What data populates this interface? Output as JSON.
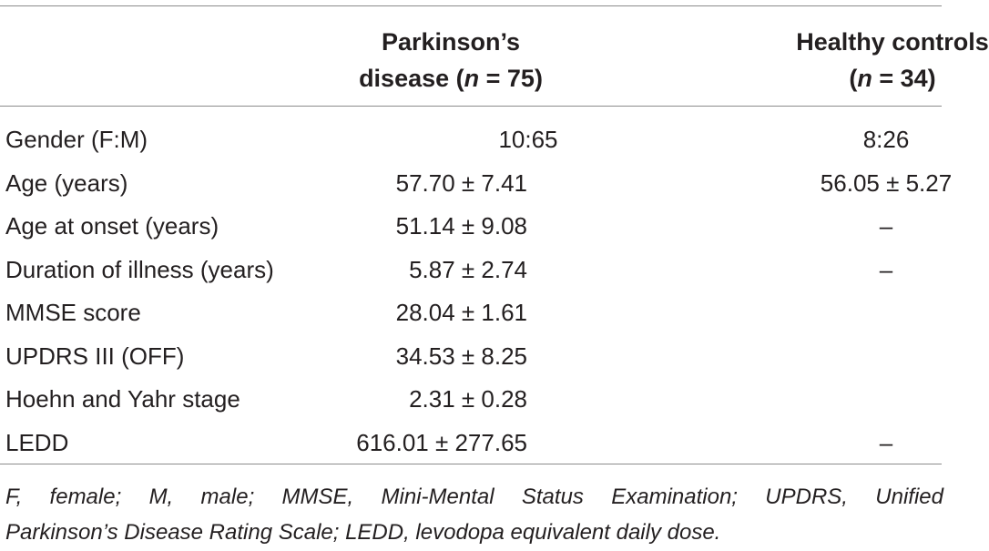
{
  "table": {
    "header": {
      "pd_line1": "Parkinson’s",
      "pd_line2_prefix": "disease (",
      "pd_n": "n",
      "pd_line2_suffix": " = 75)",
      "hc_line1": "Healthy controls",
      "hc_line2_prefix": "(",
      "hc_n": "n",
      "hc_line2_suffix": " = 34)"
    },
    "rows": [
      {
        "label": "Gender (F:M)",
        "pd": "10:65",
        "hc": "8:26"
      },
      {
        "label": "Age (years)",
        "pd": "57.70 ± 7.41",
        "hc": "56.05 ± 5.27"
      },
      {
        "label": "Age at onset (years)",
        "pd": "51.14 ± 9.08",
        "hc": "–"
      },
      {
        "label": "Duration of illness (years)",
        "pd": "5.87 ± 2.74",
        "hc": "–"
      },
      {
        "label": "MMSE score",
        "pd": "28.04 ± 1.61",
        "hc": ""
      },
      {
        "label": "UPDRS III (OFF)",
        "pd": "34.53 ± 8.25",
        "hc": ""
      },
      {
        "label": "Hoehn and Yahr stage",
        "pd": "2.31 ± 0.28",
        "hc": ""
      },
      {
        "label": "LEDD",
        "pd": "616.01 ± 277.65",
        "hc": "–"
      }
    ],
    "footnote_line1": "F, female; M, male; MMSE, Mini-Mental Status Examination; UPDRS, Unified",
    "footnote_line2": "Parkinson’s Disease Rating Scale; LEDD, levodopa equivalent daily dose."
  }
}
